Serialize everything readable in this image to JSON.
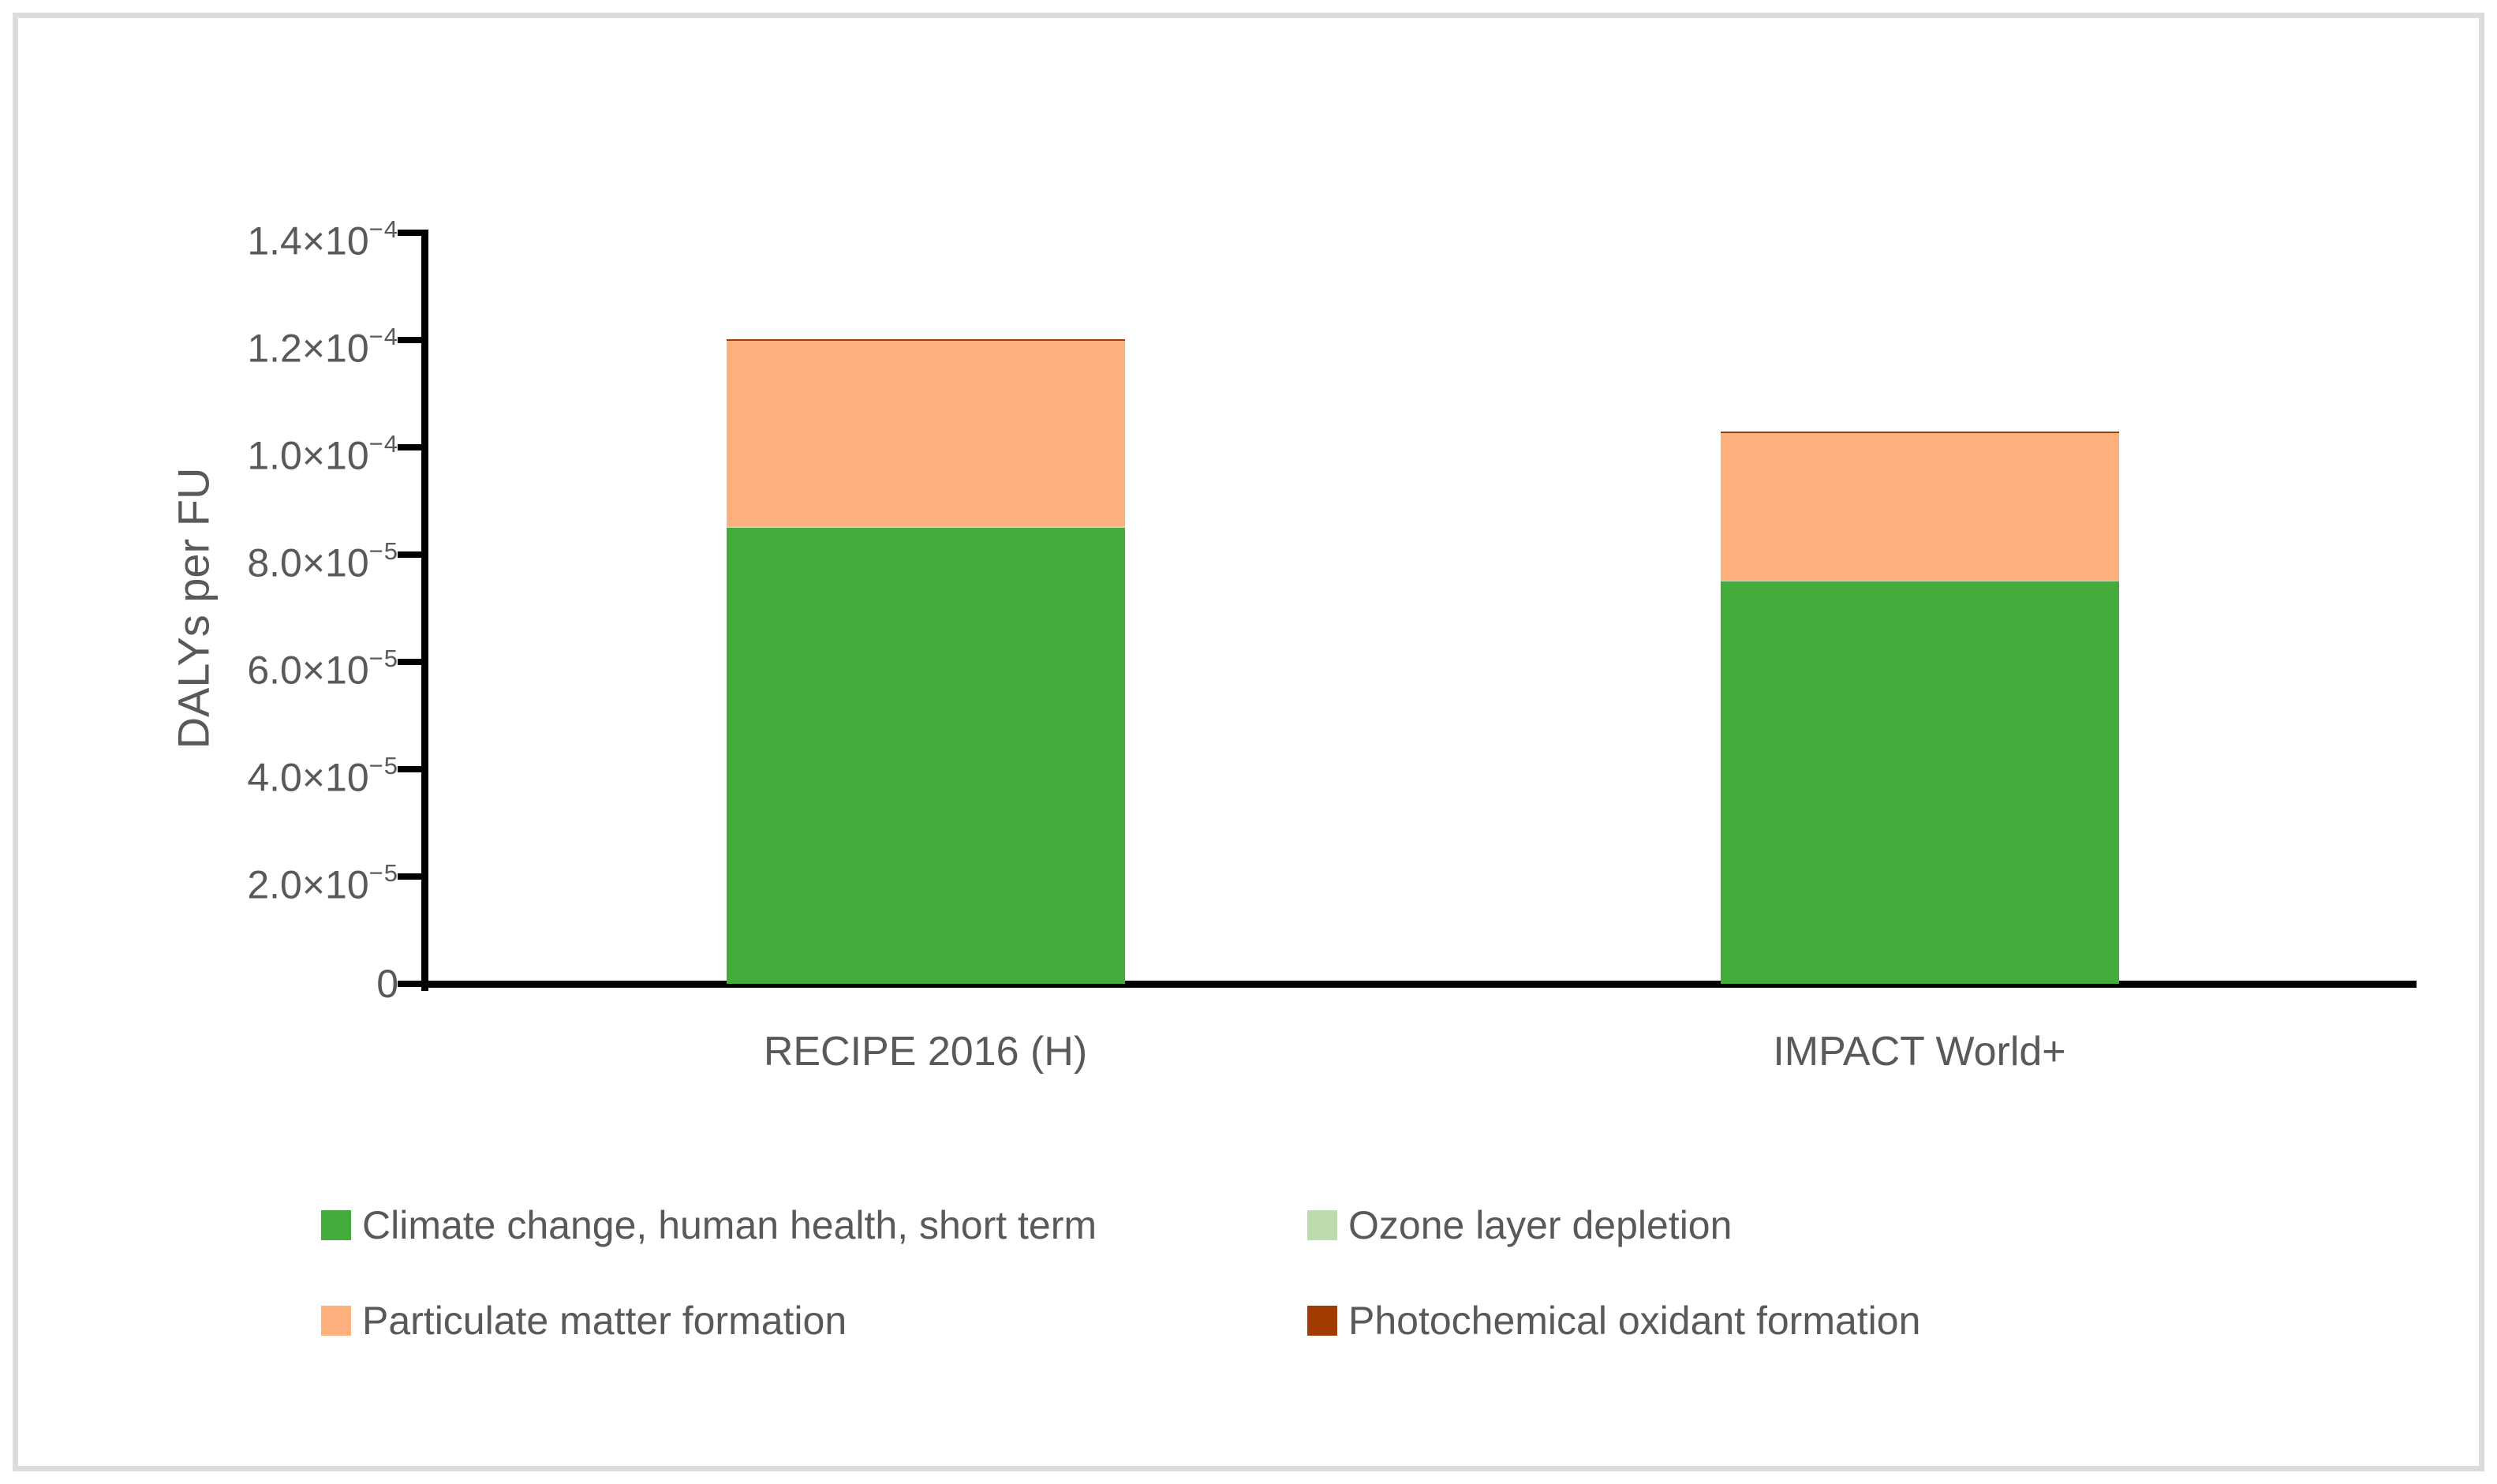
{
  "frame": {
    "border_color": "#dcdcdc",
    "background": "#ffffff"
  },
  "chart_data": {
    "type": "bar",
    "stacked": true,
    "title": "",
    "xlabel": "",
    "ylabel": "DALYs per FU",
    "ylim": [
      0,
      0.00014
    ],
    "grid": false,
    "legend_position": "bottom",
    "text_color": "#595959",
    "axis_color": "#000000",
    "categories": [
      "RECIPE 2016 (H)",
      "IMPACT World+"
    ],
    "yticks": [
      {
        "value": 0,
        "base": "0",
        "exp": ""
      },
      {
        "value": 2e-05,
        "base": "2.0×10",
        "exp": "−5"
      },
      {
        "value": 4e-05,
        "base": "4.0×10",
        "exp": "−5"
      },
      {
        "value": 6e-05,
        "base": "6.0×10",
        "exp": "−5"
      },
      {
        "value": 8e-05,
        "base": "8.0×10",
        "exp": "−5"
      },
      {
        "value": 0.0001,
        "base": "1.0×10",
        "exp": "−4"
      },
      {
        "value": 0.00012,
        "base": "1.2×10",
        "exp": "−4"
      },
      {
        "value": 0.00014,
        "base": "1.4×10",
        "exp": "−4"
      }
    ],
    "series": [
      {
        "name": "Climate change, human health, short term",
        "color": "#44AC3A",
        "values": [
          8.5e-05,
          7.5e-05
        ]
      },
      {
        "name": "Ozone layer depletion",
        "color": "#BDDCAE",
        "values": [
          3e-07,
          1e-07
        ]
      },
      {
        "name": "Particulate matter formation",
        "color": "#FDB07C",
        "values": [
          3.45e-05,
          2.75e-05
        ]
      },
      {
        "name": "Photochemical oxidant formation",
        "color": "#A23B00",
        "values": [
          4e-07,
          3e-07
        ]
      }
    ]
  }
}
